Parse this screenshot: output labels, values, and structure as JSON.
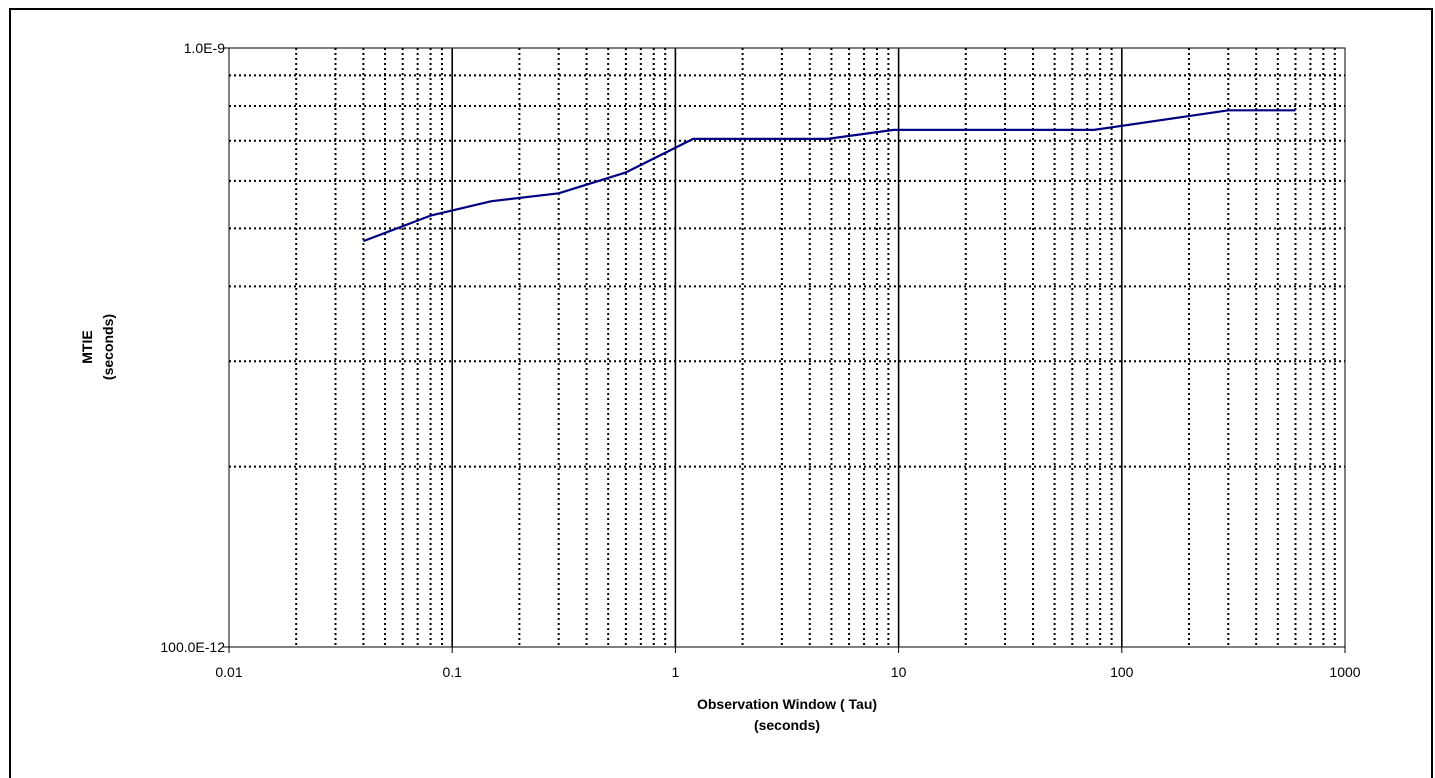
{
  "chart_data": {
    "type": "line",
    "xlabel": "Observation Window ( Tau)",
    "xlabel_unit": "(seconds)",
    "ylabel": "MTIE",
    "ylabel_unit": "(seconds)",
    "x_scale": "log",
    "y_scale": "log",
    "xlim": [
      0.01,
      1000
    ],
    "ylim": [
      1e-10,
      1e-09
    ],
    "x_ticks": [
      0.01,
      0.1,
      1,
      10,
      100,
      1000
    ],
    "x_tick_labels": [
      "0.01",
      "0.1",
      "1",
      "10",
      "100",
      "1000"
    ],
    "y_ticks": [
      1e-10,
      1e-09
    ],
    "y_tick_labels": [
      "100.0E-12",
      "1.0E-9"
    ],
    "grid": true,
    "line_color": "#000080",
    "series": [
      {
        "x": [
          0.04,
          0.08,
          0.15,
          0.3,
          0.6,
          1.2,
          4.8,
          9.5,
          75,
          300,
          600
        ],
        "y": [
          4.76e-10,
          5.25e-10,
          5.55e-10,
          5.72e-10,
          6.2e-10,
          7.05e-10,
          7.05e-10,
          7.3e-10,
          7.3e-10,
          7.87e-10,
          7.87e-10
        ]
      }
    ]
  }
}
